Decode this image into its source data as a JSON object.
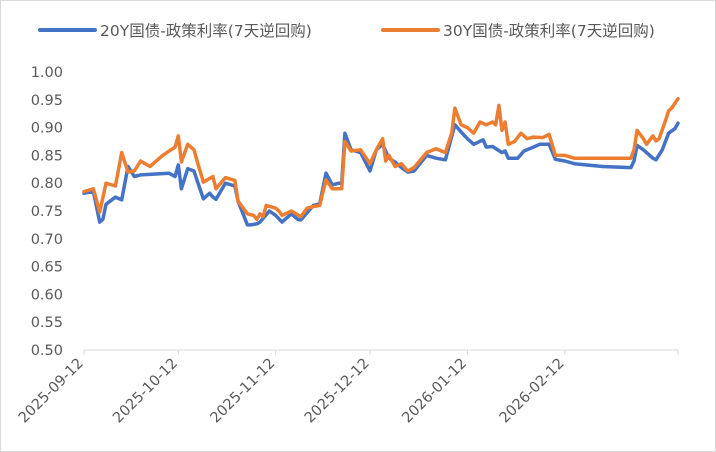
{
  "chart_data": {
    "type": "line",
    "title": "",
    "xlabel": "",
    "ylabel": "",
    "ylim": [
      0.5,
      1.0
    ],
    "y_ticks": [
      "0.50",
      "0.55",
      "0.60",
      "0.65",
      "0.70",
      "0.75",
      "0.80",
      "0.85",
      "0.90",
      "0.95",
      "1.00"
    ],
    "x_ticks": [
      "2025-09-12",
      "2025-10-12",
      "2025-11-12",
      "2025-12-12",
      "2026-01-12",
      "2026-02-12"
    ],
    "x_range": [
      "2025-09-12",
      "2026-03-20"
    ],
    "grid": false,
    "legend_position": "top",
    "series": [
      {
        "name": "20Y国债-政策利率(7天逆回购)",
        "color": "#4472C4",
        "points": [
          [
            "2025-09-12",
            0.782
          ],
          [
            "2025-09-15",
            0.785
          ],
          [
            "2025-09-17",
            0.73
          ],
          [
            "2025-09-18",
            0.735
          ],
          [
            "2025-09-19",
            0.762
          ],
          [
            "2025-09-22",
            0.775
          ],
          [
            "2025-09-24",
            0.77
          ],
          [
            "2025-09-26",
            0.83
          ],
          [
            "2025-09-28",
            0.812
          ],
          [
            "2025-09-30",
            0.815
          ],
          [
            "2025-10-09",
            0.818
          ],
          [
            "2025-10-11",
            0.812
          ],
          [
            "2025-10-12",
            0.833
          ],
          [
            "2025-10-13",
            0.79
          ],
          [
            "2025-10-15",
            0.826
          ],
          [
            "2025-10-17",
            0.822
          ],
          [
            "2025-10-18",
            0.805
          ],
          [
            "2025-10-20",
            0.772
          ],
          [
            "2025-10-22",
            0.782
          ],
          [
            "2025-10-23",
            0.775
          ],
          [
            "2025-10-24",
            0.771
          ],
          [
            "2025-10-27",
            0.8
          ],
          [
            "2025-10-30",
            0.795
          ],
          [
            "2025-10-31",
            0.768
          ],
          [
            "2025-11-03",
            0.725
          ],
          [
            "2025-11-04",
            0.725
          ],
          [
            "2025-11-06",
            0.727
          ],
          [
            "2025-11-07",
            0.73
          ],
          [
            "2025-11-10",
            0.75
          ],
          [
            "2025-11-12",
            0.742
          ],
          [
            "2025-11-14",
            0.73
          ],
          [
            "2025-11-17",
            0.745
          ],
          [
            "2025-11-19",
            0.735
          ],
          [
            "2025-11-20",
            0.734
          ],
          [
            "2025-11-24",
            0.76
          ],
          [
            "2025-11-26",
            0.763
          ],
          [
            "2025-11-28",
            0.818
          ],
          [
            "2025-11-30",
            0.797
          ],
          [
            "2025-12-02",
            0.8
          ],
          [
            "2025-12-03",
            0.8
          ],
          [
            "2025-12-04",
            0.89
          ],
          [
            "2025-12-06",
            0.86
          ],
          [
            "2025-12-09",
            0.855
          ],
          [
            "2025-12-12",
            0.822
          ],
          [
            "2025-12-14",
            0.86
          ],
          [
            "2025-12-16",
            0.87
          ],
          [
            "2025-12-18",
            0.845
          ],
          [
            "2025-12-20",
            0.838
          ],
          [
            "2025-12-22",
            0.828
          ],
          [
            "2025-12-24",
            0.82
          ],
          [
            "2025-12-26",
            0.822
          ],
          [
            "2025-12-30",
            0.85
          ],
          [
            "2026-01-02",
            0.845
          ],
          [
            "2026-01-05",
            0.842
          ],
          [
            "2026-01-08",
            0.905
          ],
          [
            "2026-01-10",
            0.892
          ],
          [
            "2026-01-12",
            0.88
          ],
          [
            "2026-01-14",
            0.87
          ],
          [
            "2026-01-17",
            0.878
          ],
          [
            "2026-01-18",
            0.865
          ],
          [
            "2026-01-20",
            0.866
          ],
          [
            "2026-01-23",
            0.855
          ],
          [
            "2026-01-24",
            0.858
          ],
          [
            "2026-01-25",
            0.845
          ],
          [
            "2026-01-28",
            0.845
          ],
          [
            "2026-01-30",
            0.858
          ],
          [
            "2026-02-02",
            0.865
          ],
          [
            "2026-02-04",
            0.87
          ],
          [
            "2026-02-07",
            0.87
          ],
          [
            "2026-02-09",
            0.843
          ],
          [
            "2026-02-12",
            0.84
          ],
          [
            "2026-02-15",
            0.835
          ],
          [
            "2026-02-24",
            0.83
          ],
          [
            "2026-03-05",
            0.828
          ],
          [
            "2026-03-06",
            0.84
          ],
          [
            "2026-03-07",
            0.868
          ],
          [
            "2026-03-09",
            0.86
          ],
          [
            "2026-03-12",
            0.845
          ],
          [
            "2026-03-13",
            0.842
          ],
          [
            "2026-03-15",
            0.86
          ],
          [
            "2026-03-17",
            0.89
          ],
          [
            "2026-03-19",
            0.898
          ],
          [
            "2026-03-20",
            0.908
          ]
        ]
      },
      {
        "name": "30Y国债-政策利率(7天逆回购)",
        "color": "#ED7D31",
        "points": [
          [
            "2025-09-12",
            0.785
          ],
          [
            "2025-09-15",
            0.79
          ],
          [
            "2025-09-17",
            0.748
          ],
          [
            "2025-09-19",
            0.8
          ],
          [
            "2025-09-22",
            0.795
          ],
          [
            "2025-09-24",
            0.855
          ],
          [
            "2025-09-26",
            0.82
          ],
          [
            "2025-09-28",
            0.822
          ],
          [
            "2025-09-30",
            0.84
          ],
          [
            "2025-10-03",
            0.83
          ],
          [
            "2025-10-07",
            0.85
          ],
          [
            "2025-10-11",
            0.865
          ],
          [
            "2025-10-12",
            0.885
          ],
          [
            "2025-10-13",
            0.838
          ],
          [
            "2025-10-15",
            0.87
          ],
          [
            "2025-10-17",
            0.86
          ],
          [
            "2025-10-18",
            0.84
          ],
          [
            "2025-10-20",
            0.802
          ],
          [
            "2025-10-23",
            0.812
          ],
          [
            "2025-10-24",
            0.79
          ],
          [
            "2025-10-27",
            0.81
          ],
          [
            "2025-10-30",
            0.805
          ],
          [
            "2025-10-31",
            0.768
          ],
          [
            "2025-11-03",
            0.745
          ],
          [
            "2025-11-05",
            0.742
          ],
          [
            "2025-11-06",
            0.735
          ],
          [
            "2025-11-07",
            0.745
          ],
          [
            "2025-11-08",
            0.74
          ],
          [
            "2025-11-09",
            0.76
          ],
          [
            "2025-11-12",
            0.755
          ],
          [
            "2025-11-13",
            0.75
          ],
          [
            "2025-11-14",
            0.742
          ],
          [
            "2025-11-17",
            0.75
          ],
          [
            "2025-11-20",
            0.74
          ],
          [
            "2025-11-22",
            0.755
          ],
          [
            "2025-11-24",
            0.758
          ],
          [
            "2025-11-26",
            0.76
          ],
          [
            "2025-11-28",
            0.806
          ],
          [
            "2025-11-30",
            0.79
          ],
          [
            "2025-12-03",
            0.79
          ],
          [
            "2025-12-04",
            0.875
          ],
          [
            "2025-12-06",
            0.858
          ],
          [
            "2025-12-09",
            0.86
          ],
          [
            "2025-12-12",
            0.835
          ],
          [
            "2025-12-14",
            0.86
          ],
          [
            "2025-12-16",
            0.88
          ],
          [
            "2025-12-17",
            0.84
          ],
          [
            "2025-12-18",
            0.85
          ],
          [
            "2025-12-20",
            0.83
          ],
          [
            "2025-12-22",
            0.835
          ],
          [
            "2025-12-24",
            0.822
          ],
          [
            "2025-12-26",
            0.828
          ],
          [
            "2025-12-30",
            0.855
          ],
          [
            "2026-01-02",
            0.862
          ],
          [
            "2026-01-05",
            0.855
          ],
          [
            "2026-01-07",
            0.89
          ],
          [
            "2026-01-08",
            0.935
          ],
          [
            "2026-01-10",
            0.905
          ],
          [
            "2026-01-12",
            0.9
          ],
          [
            "2026-01-14",
            0.89
          ],
          [
            "2026-01-16",
            0.91
          ],
          [
            "2026-01-18",
            0.905
          ],
          [
            "2026-01-20",
            0.91
          ],
          [
            "2026-01-21",
            0.905
          ],
          [
            "2026-01-22",
            0.94
          ],
          [
            "2026-01-23",
            0.895
          ],
          [
            "2026-01-24",
            0.91
          ],
          [
            "2026-01-25",
            0.87
          ],
          [
            "2026-01-27",
            0.875
          ],
          [
            "2026-01-29",
            0.89
          ],
          [
            "2026-01-31",
            0.88
          ],
          [
            "2026-02-02",
            0.883
          ],
          [
            "2026-02-05",
            0.882
          ],
          [
            "2026-02-07",
            0.888
          ],
          [
            "2026-02-09",
            0.85
          ],
          [
            "2026-02-12",
            0.85
          ],
          [
            "2026-02-15",
            0.845
          ],
          [
            "2026-02-20",
            0.845
          ],
          [
            "2026-03-05",
            0.845
          ],
          [
            "2026-03-06",
            0.86
          ],
          [
            "2026-03-07",
            0.895
          ],
          [
            "2026-03-09",
            0.88
          ],
          [
            "2026-03-10",
            0.87
          ],
          [
            "2026-03-12",
            0.885
          ],
          [
            "2026-03-13",
            0.876
          ],
          [
            "2026-03-14",
            0.88
          ],
          [
            "2026-03-16",
            0.912
          ],
          [
            "2026-03-17",
            0.93
          ],
          [
            "2026-03-18",
            0.935
          ],
          [
            "2026-03-20",
            0.952
          ]
        ]
      }
    ]
  }
}
